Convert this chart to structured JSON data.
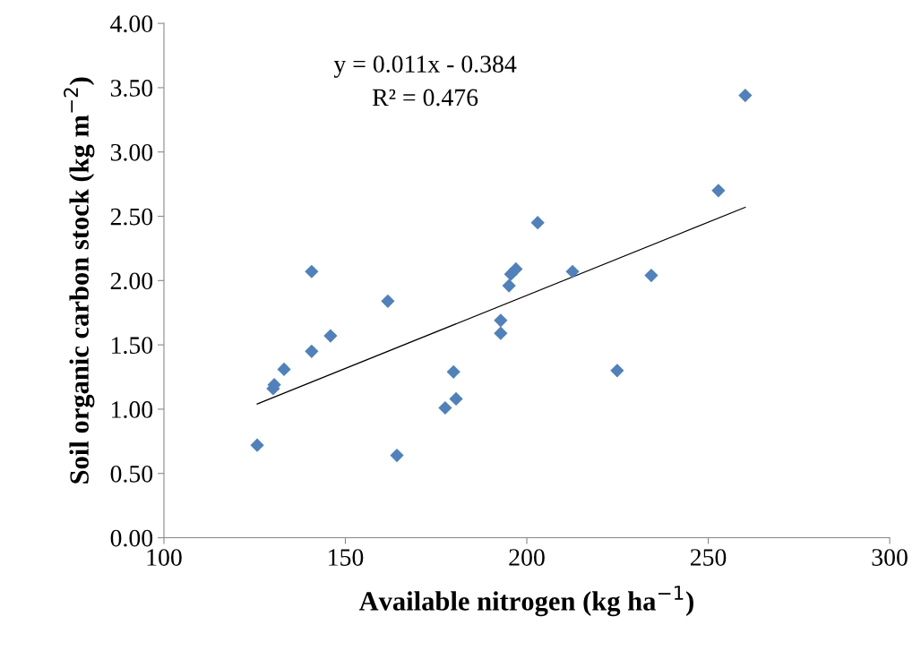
{
  "chart_data": {
    "type": "scatter",
    "xlabel": "Available nitrogen (kg ha$^{−1}$)",
    "ylabel": "Soil organic carbon stock (kg m$^{−2}$)",
    "annotations": [
      "y = 0.011x - 0.384",
      "R² = 0.476"
    ],
    "xlim": [
      100,
      300
    ],
    "xticks": [
      100,
      150,
      200,
      250,
      300
    ],
    "ylim": [
      0,
      4
    ],
    "yticks": [
      {
        "value": 0,
        "label": "0.00"
      },
      {
        "value": 0.5,
        "label": "0.50"
      },
      {
        "value": 1,
        "label": "1.00"
      },
      {
        "value": 1.5,
        "label": "1.50"
      },
      {
        "value": 2,
        "label": "2.00"
      },
      {
        "value": 2.5,
        "label": "2.50"
      },
      {
        "value": 3,
        "label": "3.00"
      },
      {
        "value": 3.5,
        "label": "3.50"
      },
      {
        "value": 4,
        "label": "4.00"
      }
    ],
    "series": [
      {
        "color": "#4f81bd",
        "marker": "diamond",
        "x": [
          125.7,
          130.1,
          130.4,
          133.1,
          140.7,
          140.7,
          145.9,
          161.7,
          164.2,
          177.5,
          179.8,
          180.5,
          192.8,
          192.8,
          195.1,
          195.6,
          197.0,
          203.0,
          212.6,
          224.9,
          234.3,
          252.8,
          260.2
        ],
        "values": [
          0.72,
          1.16,
          1.19,
          1.31,
          2.07,
          1.45,
          1.57,
          1.84,
          0.64,
          1.01,
          1.29,
          1.08,
          1.69,
          1.59,
          1.96,
          2.05,
          2.09,
          2.45,
          2.07,
          1.3,
          2.04,
          2.7,
          3.44
        ]
      },
      {
        "type": "line",
        "color": "#000000",
        "x": [
          125.7,
          260.2
        ],
        "values": [
          1.04,
          2.57
        ]
      }
    ]
  }
}
